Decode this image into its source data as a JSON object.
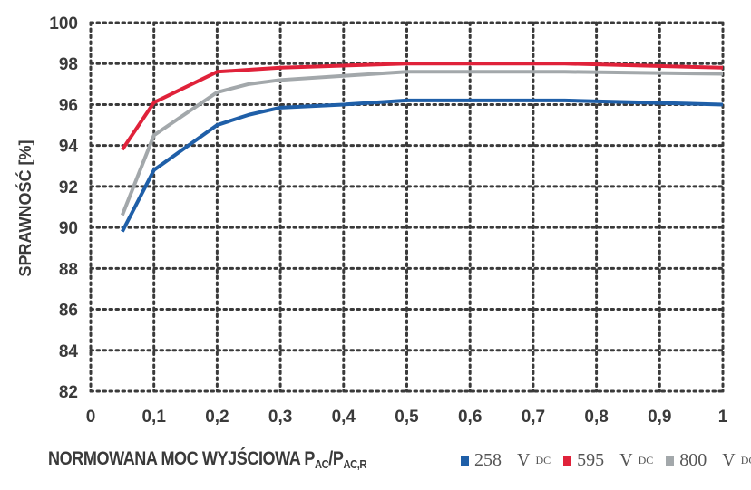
{
  "chart_data": {
    "type": "line",
    "title": "",
    "xlabel": "NORMOWANA MOC WYJŚCIOWA",
    "xlabel_symbol": {
      "p1": "P",
      "p1_sub": "AC",
      "sep": "/",
      "p2": "P",
      "p2_sub": "AC,R"
    },
    "ylabel": "SPRAWNOŚĆ [%]",
    "xlim": [
      0,
      1
    ],
    "ylim": [
      82,
      100
    ],
    "grid": true,
    "x_ticks": [
      "0",
      "0,1",
      "0,2",
      "0,3",
      "0,4",
      "0,5",
      "0,6",
      "0,7",
      "0,8",
      "0,9",
      "1"
    ],
    "y_ticks": [
      "82",
      "84",
      "86",
      "88",
      "90",
      "92",
      "94",
      "96",
      "98",
      "100"
    ],
    "x": [
      0.05,
      0.1,
      0.2,
      0.25,
      0.3,
      0.4,
      0.5,
      0.75,
      1.0
    ],
    "series": [
      {
        "name": "258",
        "unit": "V",
        "unit_sub": "DC",
        "color": "#1f5fa8",
        "values": [
          89.8,
          92.8,
          95.0,
          95.5,
          95.85,
          96.0,
          96.2,
          96.2,
          96.0
        ]
      },
      {
        "name": "595",
        "unit": "V",
        "unit_sub": "DC",
        "color": "#e0223a",
        "values": [
          93.8,
          96.1,
          97.6,
          97.7,
          97.8,
          97.9,
          98.0,
          98.0,
          97.8
        ]
      },
      {
        "name": "800",
        "unit": "V",
        "unit_sub": "DC",
        "color": "#a3a8ab",
        "values": [
          90.6,
          94.5,
          96.6,
          97.0,
          97.2,
          97.4,
          97.6,
          97.6,
          97.5
        ]
      }
    ],
    "legend_position": "bottom-right"
  }
}
